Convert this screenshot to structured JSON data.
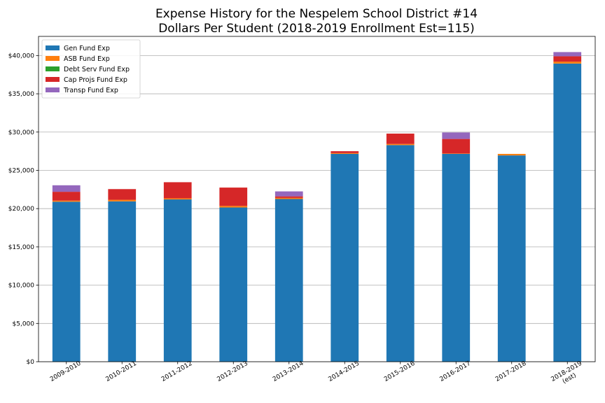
{
  "chart_data": {
    "type": "bar",
    "stacked": true,
    "title_lines": [
      "Expense History for the Nespelem School District #14",
      "Dollars Per Student (2018-2019 Enrollment Est=115)"
    ],
    "categories": [
      [
        "2009-2010"
      ],
      [
        "2010-2011"
      ],
      [
        "2011-2012"
      ],
      [
        "2012-2013"
      ],
      [
        "2013-2014"
      ],
      [
        "2014-2015"
      ],
      [
        "2015-2016"
      ],
      [
        "2016-2017"
      ],
      [
        "2017-2018"
      ],
      [
        "2018-2019",
        "(est)"
      ]
    ],
    "ylim": [
      0,
      42500
    ],
    "yticks": [
      0,
      5000,
      10000,
      15000,
      20000,
      25000,
      30000,
      35000,
      40000
    ],
    "ytick_labels": [
      "$0",
      "$5,000",
      "$10,000",
      "$15,000",
      "$20,000",
      "$25,000",
      "$30,000",
      "$35,000",
      "$40,000"
    ],
    "grid": "y",
    "legend_position": "top-left",
    "series": [
      {
        "name": "Gen Fund Exp",
        "color": "#1f77b4",
        "values": [
          20900,
          20950,
          21200,
          20150,
          21250,
          27150,
          28300,
          27150,
          26950,
          38950
        ]
      },
      {
        "name": "ASB Fund Exp",
        "color": "#ff7f0e",
        "values": [
          150,
          200,
          150,
          200,
          150,
          100,
          150,
          50,
          200,
          250
        ]
      },
      {
        "name": "Debt Serv Fund Exp",
        "color": "#2ca02c",
        "values": [
          0,
          0,
          0,
          0,
          0,
          0,
          0,
          0,
          0,
          0
        ]
      },
      {
        "name": "Cap Projs Fund Exp",
        "color": "#d62728",
        "values": [
          1150,
          1400,
          2100,
          2400,
          200,
          250,
          1350,
          1900,
          0,
          700
        ]
      },
      {
        "name": "Transp Fund Exp",
        "color": "#9467bd",
        "values": [
          850,
          0,
          0,
          0,
          650,
          0,
          0,
          850,
          0,
          550
        ]
      }
    ]
  }
}
